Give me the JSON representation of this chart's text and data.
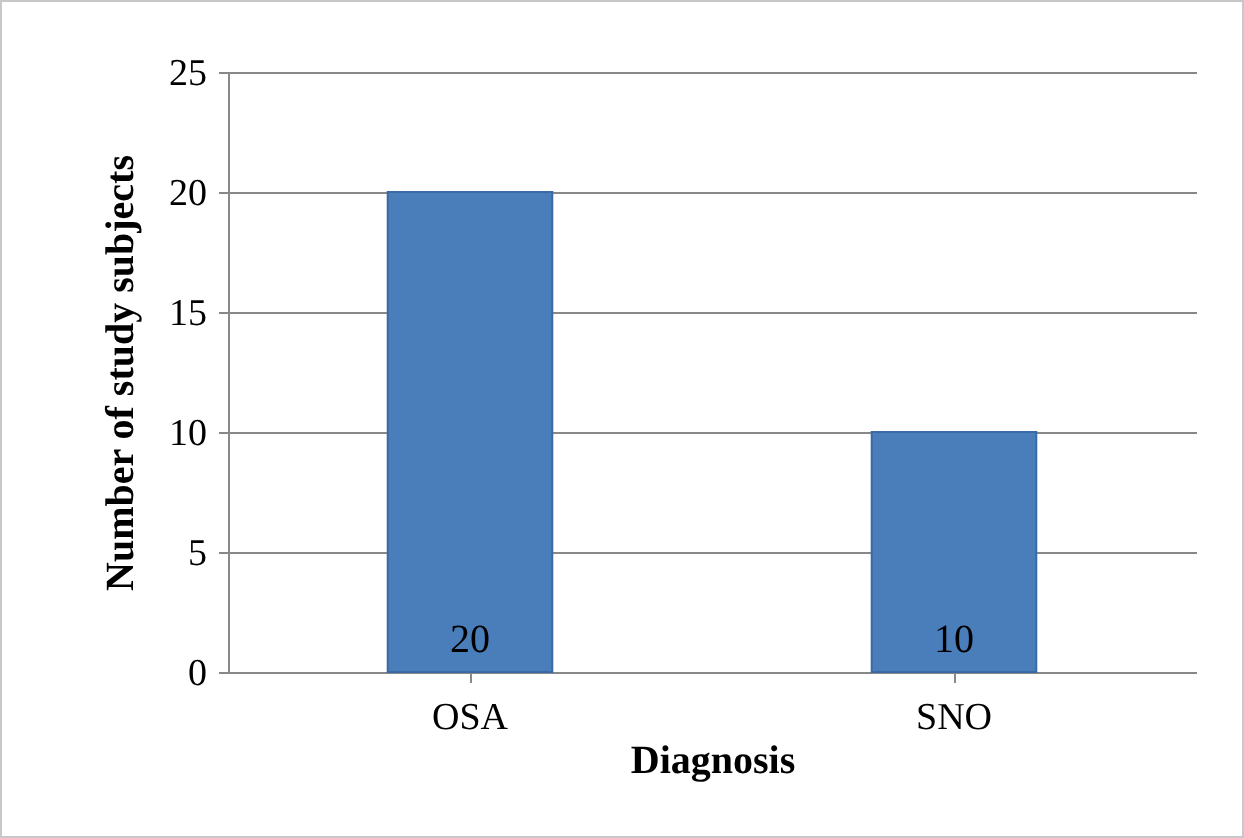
{
  "chart_data": {
    "type": "bar",
    "xlabel": "Diagnosis",
    "ylabel": "Number of study subjects",
    "categories": [
      "OSA",
      "SNO"
    ],
    "values": [
      20,
      10
    ],
    "color": "#4a7ebb",
    "ylim": [
      0,
      25
    ],
    "yticks": [
      0,
      5,
      10,
      15,
      20,
      25
    ],
    "grid": "y",
    "data_labels": true
  }
}
